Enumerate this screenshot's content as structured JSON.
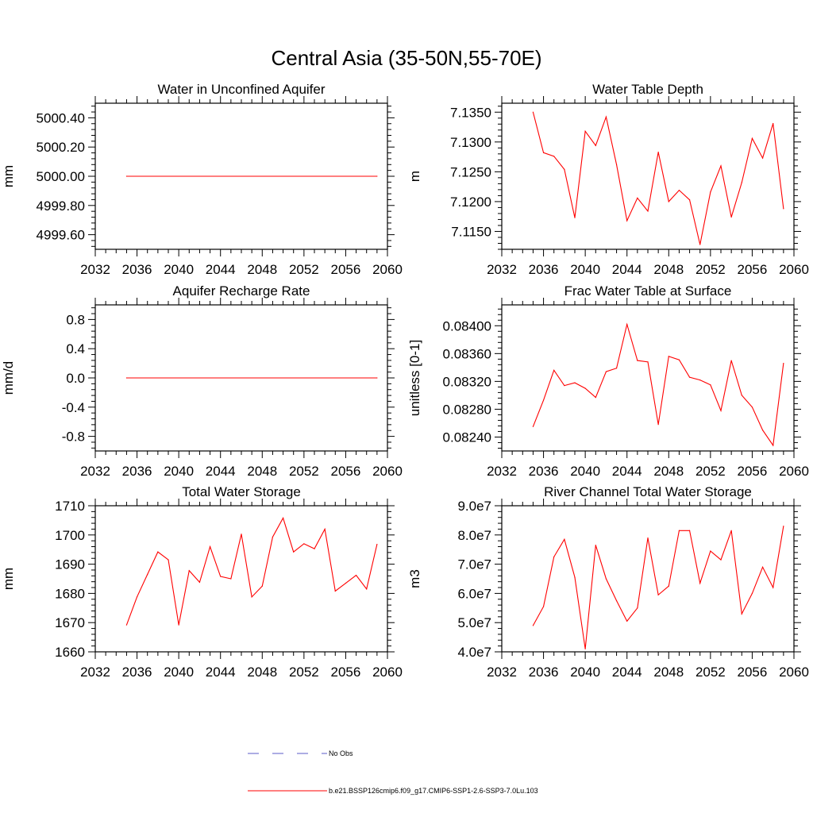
{
  "figure": {
    "title": "Central Asia (35-50N,55-70E)"
  },
  "legend": {
    "placement": "bottom-center",
    "entries": [
      {
        "label": "No Obs",
        "color": "#5b5bc8",
        "style": "dashed"
      },
      {
        "label": "b.e21.BSSP126cmip6.f09_g17.CMIP6-SSP1-2.6-SSP3-7.0Lu.103",
        "color": "#ff0000",
        "style": "solid"
      }
    ]
  },
  "chart_data": [
    {
      "type": "line",
      "title": "Water in Unconfined Aquifer",
      "xlabel": "",
      "ylabel": "mm",
      "xlim": [
        2032,
        2060
      ],
      "ylim": [
        4999.5,
        5000.5
      ],
      "xticks": [
        2032,
        2036,
        2040,
        2044,
        2048,
        2052,
        2056,
        2060
      ],
      "yticks": [
        4999.6,
        4999.8,
        5000.0,
        5000.2,
        5000.4
      ],
      "ytick_labels": [
        "4999.60",
        "4999.80",
        "5000.00",
        "5000.20",
        "5000.40"
      ],
      "x": [
        2035,
        2059
      ],
      "series": [
        {
          "color": "#ff0000",
          "values": [
            5000.0,
            5000.0
          ]
        }
      ]
    },
    {
      "type": "line",
      "title": "Water Table Depth",
      "xlabel": "",
      "ylabel": "m",
      "xlim": [
        2032,
        2060
      ],
      "ylim": [
        7.112,
        7.1365
      ],
      "xticks": [
        2032,
        2036,
        2040,
        2044,
        2048,
        2052,
        2056,
        2060
      ],
      "yticks": [
        7.115,
        7.12,
        7.125,
        7.13,
        7.135
      ],
      "ytick_labels": [
        "7.1150",
        "7.1200",
        "7.1250",
        "7.1300",
        "7.1350"
      ],
      "x": [
        2035,
        2036,
        2037,
        2038,
        2039,
        2040,
        2041,
        2042,
        2043,
        2044,
        2045,
        2046,
        2047,
        2048,
        2049,
        2050,
        2051,
        2052,
        2053,
        2054,
        2055,
        2056,
        2057,
        2058,
        2059
      ],
      "series": [
        {
          "color": "#ff0000",
          "values": [
            7.135,
            7.1282,
            7.1276,
            7.1254,
            7.1173,
            7.1318,
            7.1294,
            7.1342,
            7.1262,
            7.1168,
            7.1206,
            7.1184,
            7.1283,
            7.12,
            7.1219,
            7.1203,
            7.1128,
            7.1216,
            7.126,
            7.1174,
            7.1232,
            7.1306,
            7.1273,
            7.1331,
            7.1188
          ]
        }
      ]
    },
    {
      "type": "line",
      "title": "Aquifer Recharge Rate",
      "xlabel": "",
      "ylabel": "mm/d",
      "xlim": [
        2032,
        2060
      ],
      "ylim": [
        -1.0,
        1.0
      ],
      "xticks": [
        2032,
        2036,
        2040,
        2044,
        2048,
        2052,
        2056,
        2060
      ],
      "yticks": [
        -0.8,
        -0.4,
        0.0,
        0.4,
        0.8
      ],
      "ytick_labels": [
        "-0.8",
        "-0.4",
        "0.0",
        "0.4",
        "0.8"
      ],
      "x": [
        2035,
        2059
      ],
      "series": [
        {
          "color": "#ff0000",
          "values": [
            0.0,
            0.0
          ]
        }
      ]
    },
    {
      "type": "line",
      "title": "Frac Water Table at Surface",
      "xlabel": "",
      "ylabel": "unitless [0-1]",
      "xlim": [
        2032,
        2060
      ],
      "ylim": [
        0.0822,
        0.0843
      ],
      "xticks": [
        2032,
        2036,
        2040,
        2044,
        2048,
        2052,
        2056,
        2060
      ],
      "yticks": [
        0.0824,
        0.0828,
        0.0832,
        0.0836,
        0.084
      ],
      "ytick_labels": [
        "0.08240",
        "0.08280",
        "0.08320",
        "0.08360",
        "0.08400"
      ],
      "x": [
        2035,
        2036,
        2037,
        2038,
        2039,
        2040,
        2041,
        2042,
        2043,
        2044,
        2045,
        2046,
        2047,
        2048,
        2049,
        2050,
        2051,
        2052,
        2053,
        2054,
        2055,
        2056,
        2057,
        2058,
        2059
      ],
      "series": [
        {
          "color": "#ff0000",
          "values": [
            0.08255,
            0.08293,
            0.08336,
            0.08314,
            0.08318,
            0.0831,
            0.08297,
            0.08334,
            0.08339,
            0.08402,
            0.0835,
            0.08348,
            0.08258,
            0.08356,
            0.08351,
            0.08326,
            0.08322,
            0.08315,
            0.08278,
            0.0835,
            0.083,
            0.08283,
            0.0825,
            0.08228,
            0.08346
          ]
        }
      ]
    },
    {
      "type": "line",
      "title": "Total Water Storage",
      "xlabel": "",
      "ylabel": "mm",
      "xlim": [
        2032,
        2060
      ],
      "ylim": [
        1660,
        1710
      ],
      "xticks": [
        2032,
        2036,
        2040,
        2044,
        2048,
        2052,
        2056,
        2060
      ],
      "yticks": [
        1660,
        1670,
        1680,
        1690,
        1700,
        1710
      ],
      "ytick_labels": [
        "1660",
        "1670",
        "1680",
        "1690",
        "1700",
        "1710"
      ],
      "x": [
        2035,
        2036,
        2037,
        2038,
        2039,
        2040,
        2041,
        2042,
        2043,
        2044,
        2045,
        2046,
        2047,
        2048,
        2049,
        2050,
        2051,
        2052,
        2053,
        2054,
        2055,
        2056,
        2057,
        2058,
        2059
      ],
      "series": [
        {
          "color": "#ff0000",
          "values": [
            1669.2,
            1678.8,
            1686.5,
            1694.2,
            1691.5,
            1669.2,
            1687.8,
            1683.8,
            1696.0,
            1685.8,
            1685.0,
            1700.3,
            1678.8,
            1682.5,
            1699.3,
            1705.8,
            1694.2,
            1697.0,
            1695.3,
            1702.0,
            1680.8,
            1683.5,
            1686.2,
            1681.5,
            1696.8
          ]
        }
      ]
    },
    {
      "type": "line",
      "title": "River Channel Total Water Storage",
      "xlabel": "",
      "ylabel": "m3",
      "xlim": [
        2032,
        2060
      ],
      "ylim": [
        40000000.0,
        90000000.0
      ],
      "xticks": [
        2032,
        2036,
        2040,
        2044,
        2048,
        2052,
        2056,
        2060
      ],
      "yticks": [
        40000000.0,
        50000000.0,
        60000000.0,
        70000000.0,
        80000000.0,
        90000000.0
      ],
      "ytick_labels": [
        "4.0e7",
        "5.0e7",
        "6.0e7",
        "7.0e7",
        "8.0e7",
        "9.0e7"
      ],
      "x": [
        2035,
        2036,
        2037,
        2038,
        2039,
        2040,
        2041,
        2042,
        2043,
        2044,
        2045,
        2046,
        2047,
        2048,
        2049,
        2050,
        2051,
        2052,
        2053,
        2054,
        2055,
        2056,
        2057,
        2058,
        2059
      ],
      "series": [
        {
          "color": "#ff0000",
          "values": [
            49000000.0,
            55500000.0,
            72500000.0,
            78500000.0,
            65500000.0,
            41000000.0,
            76500000.0,
            65000000.0,
            57500000.0,
            50500000.0,
            55000000.0,
            79000000.0,
            59500000.0,
            62500000.0,
            81500000.0,
            81500000.0,
            63500000.0,
            74500000.0,
            71500000.0,
            81500000.0,
            53000000.0,
            60000000.0,
            69000000.0,
            62000000.0,
            83000000.0
          ]
        }
      ]
    }
  ]
}
